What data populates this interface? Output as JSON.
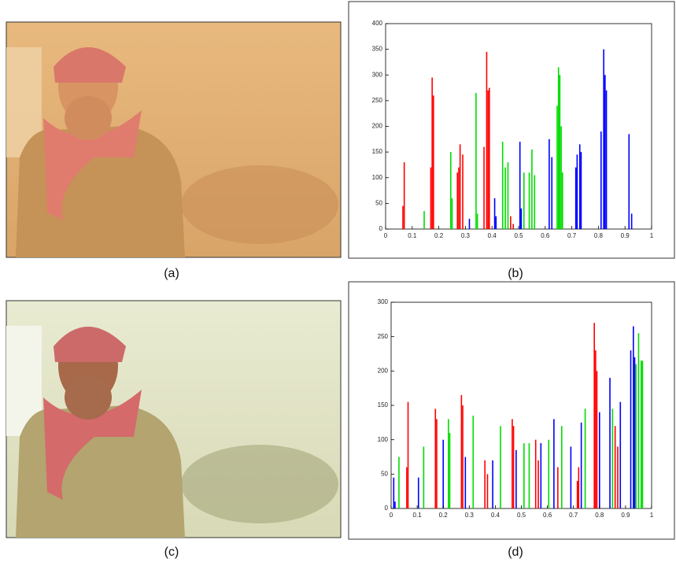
{
  "captions": [
    "(a)",
    "(b)",
    "(c)",
    "(d)"
  ],
  "chart_data": [
    {
      "type": "bar",
      "xlim": [
        0,
        1
      ],
      "xticks": [
        0,
        0.1,
        0.2,
        0.3,
        0.4,
        0.5,
        0.6,
        0.7,
        0.8,
        0.9,
        1
      ],
      "ylim": [
        0,
        400
      ],
      "yticks": [
        0,
        50,
        100,
        150,
        200,
        250,
        300,
        350,
        400
      ],
      "series": [
        {
          "color": "#ff0000",
          "x": [
            0.065,
            0.07,
            0.17,
            0.175,
            0.18,
            0.27,
            0.275,
            0.28,
            0.29,
            0.37,
            0.38,
            0.385,
            0.39,
            0.47,
            0.48
          ],
          "values": [
            45,
            130,
            120,
            295,
            260,
            110,
            120,
            165,
            145,
            160,
            345,
            270,
            275,
            25,
            10
          ]
        },
        {
          "color": "#00dd00",
          "x": [
            0.145,
            0.245,
            0.25,
            0.34,
            0.345,
            0.44,
            0.45,
            0.46,
            0.52,
            0.54,
            0.55,
            0.56,
            0.645,
            0.65,
            0.655,
            0.66,
            0.665
          ],
          "values": [
            35,
            150,
            60,
            265,
            30,
            170,
            120,
            130,
            110,
            110,
            155,
            105,
            240,
            315,
            300,
            200,
            110
          ]
        },
        {
          "color": "#0000ff",
          "x": [
            0.315,
            0.41,
            0.415,
            0.505,
            0.51,
            0.615,
            0.625,
            0.715,
            0.72,
            0.73,
            0.735,
            0.81,
            0.82,
            0.825,
            0.83,
            0.915,
            0.925
          ],
          "values": [
            20,
            60,
            25,
            170,
            40,
            175,
            140,
            120,
            145,
            165,
            150,
            190,
            350,
            300,
            270,
            185,
            30
          ]
        }
      ]
    },
    {
      "type": "bar",
      "xlim": [
        0,
        1
      ],
      "xticks": [
        0,
        0.1,
        0.2,
        0.3,
        0.4,
        0.5,
        0.6,
        0.7,
        0.8,
        0.9,
        1
      ],
      "ylim": [
        0,
        300
      ],
      "yticks": [
        0,
        50,
        100,
        150,
        200,
        250,
        300
      ],
      "series": [
        {
          "color": "#ff0000",
          "x": [
            0.06,
            0.065,
            0.17,
            0.175,
            0.27,
            0.275,
            0.36,
            0.37,
            0.465,
            0.47,
            0.555,
            0.565,
            0.64,
            0.715,
            0.72,
            0.78,
            0.785,
            0.79,
            0.86,
            0.87
          ],
          "values": [
            60,
            155,
            145,
            130,
            165,
            150,
            70,
            50,
            130,
            120,
            100,
            70,
            60,
            40,
            60,
            270,
            230,
            200,
            120,
            90
          ]
        },
        {
          "color": "#00dd00",
          "x": [
            0.03,
            0.125,
            0.22,
            0.225,
            0.315,
            0.42,
            0.51,
            0.53,
            0.605,
            0.655,
            0.745,
            0.85,
            0.94,
            0.95,
            0.96,
            0.965
          ],
          "values": [
            75,
            90,
            130,
            110,
            135,
            120,
            95,
            95,
            100,
            120,
            145,
            145,
            210,
            255,
            215,
            215
          ]
        },
        {
          "color": "#0000ff",
          "x": [
            0.01,
            0.015,
            0.105,
            0.2,
            0.285,
            0.39,
            0.48,
            0.575,
            0.625,
            0.69,
            0.73,
            0.8,
            0.84,
            0.88,
            0.92,
            0.93,
            0.935
          ],
          "values": [
            45,
            10,
            45,
            100,
            75,
            70,
            85,
            95,
            130,
            90,
            125,
            140,
            190,
            155,
            230,
            265,
            220
          ]
        }
      ]
    }
  ]
}
